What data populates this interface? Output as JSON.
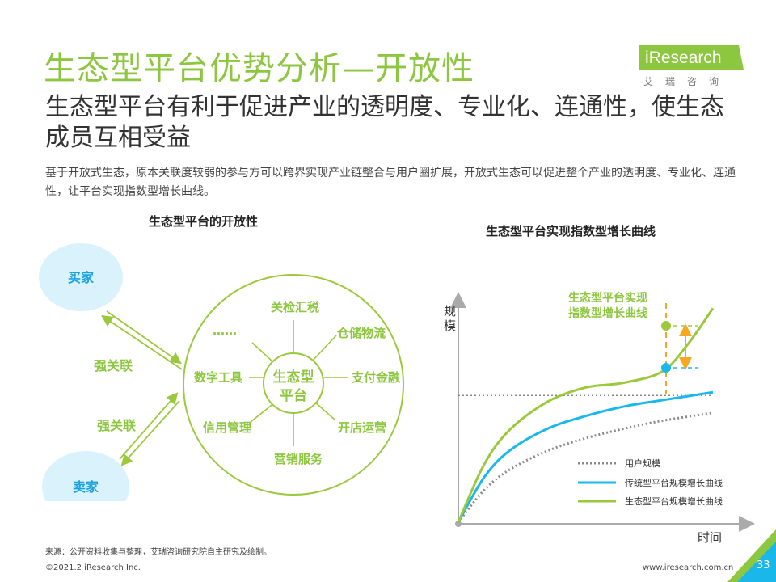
{
  "title": "生态型平台优势分析—开放性",
  "subtitle": "生态型平台有利于促进产业的透明度、专业化、连通性，使生态成员互相受益",
  "description": "基于开放式生态，原本关联度较弱的参与方可以跨界实现产业链整合与用户圈扩展，开放式生态可以促进整个产业的透明度、专业化、连通性，让平台实现指数型增长曲线。",
  "logo": {
    "brand": "iResearch",
    "cn": "艾瑞咨询"
  },
  "left_panel": {
    "heading": "生态型平台的开放性",
    "buyer": "买家",
    "seller": "卖家",
    "link_top": "强关联",
    "link_bottom": "强关联",
    "center": [
      "生态型",
      "平台"
    ],
    "spokes": [
      "关检汇税",
      "仓储物流",
      "支付金融",
      "开店运营",
      "营销服务",
      "信用管理",
      "数字工具",
      "……"
    ]
  },
  "right_panel": {
    "heading": "生态型平台实现指数型增长曲线",
    "ylabel": [
      "规",
      "模"
    ],
    "xlabel": "时间",
    "callout": [
      "生态型平台实现",
      "指数型增长曲线"
    ],
    "legend": [
      "用户规模",
      "传统型平台规模增长曲线",
      "生态型平台规模增长曲线"
    ]
  },
  "chart_data": {
    "type": "line",
    "title": "生态型平台实现指数型增长曲线",
    "xlabel": "时间",
    "ylabel": "规模",
    "series": [
      {
        "name": "用户规模",
        "style": "dotted",
        "color": "#8a8a8a",
        "x": [
          0,
          0.1,
          0.2,
          0.35,
          0.5,
          0.65,
          0.8,
          1.0
        ],
        "y": [
          0,
          0.2,
          0.33,
          0.45,
          0.53,
          0.59,
          0.64,
          0.69
        ]
      },
      {
        "name": "传统型平台规模增长曲线",
        "style": "solid",
        "color": "#1ab7ea",
        "x": [
          0,
          0.1,
          0.2,
          0.35,
          0.5,
          0.65,
          0.8,
          1.0
        ],
        "y": [
          0,
          0.28,
          0.45,
          0.59,
          0.67,
          0.73,
          0.77,
          0.82
        ]
      },
      {
        "name": "生态型平台规模增长曲线",
        "style": "solid",
        "color": "#9cc83c",
        "x": [
          0,
          0.1,
          0.2,
          0.35,
          0.5,
          0.65,
          0.8,
          0.9,
          1.0
        ],
        "y": [
          0,
          0.36,
          0.58,
          0.76,
          0.85,
          0.88,
          0.95,
          1.12,
          1.35
        ]
      }
    ],
    "reference_line": {
      "name": "用户规模",
      "y": 0.8
    }
  },
  "footer": {
    "source": "来源：公开资料收集与整理，艾瑞咨询研究院自主研究及绘制。",
    "copyright": "©2021.2 iResearch Inc.",
    "website": "www.iresearch.com.cn",
    "page": "33"
  },
  "colors": {
    "accent_green": "#8dc63f",
    "curve_blue": "#1ab7ea",
    "bubble_blue": "#d9f2fb",
    "arrow_orange": "#f7a823"
  }
}
